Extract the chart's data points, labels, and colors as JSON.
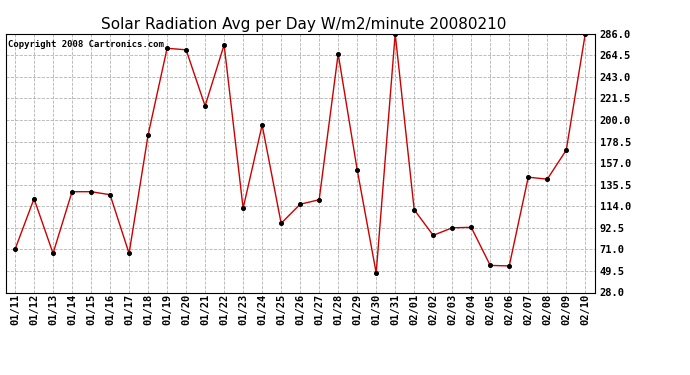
{
  "title": "Solar Radiation Avg per Day W/m2/minute 20080210",
  "copyright": "Copyright 2008 Cartronics.com",
  "labels": [
    "01/11",
    "01/12",
    "01/13",
    "01/14",
    "01/15",
    "01/16",
    "01/17",
    "01/18",
    "01/19",
    "01/20",
    "01/21",
    "01/22",
    "01/23",
    "01/24",
    "01/25",
    "01/26",
    "01/27",
    "01/28",
    "01/29",
    "01/30",
    "01/31",
    "02/01",
    "02/02",
    "02/03",
    "02/04",
    "02/05",
    "02/06",
    "02/07",
    "02/08",
    "02/09",
    "02/10"
  ],
  "values": [
    71.0,
    121.5,
    67.0,
    128.5,
    128.5,
    125.5,
    67.0,
    185.0,
    271.5,
    270.0,
    214.0,
    275.0,
    112.0,
    195.0,
    97.0,
    116.0,
    120.5,
    266.0,
    150.5,
    47.5,
    286.0,
    110.5,
    85.0,
    92.5,
    93.0,
    55.0,
    54.5,
    143.0,
    141.0,
    170.0,
    286.0
  ],
  "line_color": "#cc0000",
  "marker_color": "#cc0000",
  "bg_color": "#ffffff",
  "plot_bg_color": "#ffffff",
  "grid_color": "#aaaaaa",
  "ylim": [
    28.0,
    286.0
  ],
  "yticks": [
    28.0,
    49.5,
    71.0,
    92.5,
    114.0,
    135.5,
    157.0,
    178.5,
    200.0,
    221.5,
    243.0,
    264.5,
    286.0
  ],
  "title_fontsize": 11,
  "copyright_fontsize": 6.5,
  "tick_fontsize": 7.5
}
